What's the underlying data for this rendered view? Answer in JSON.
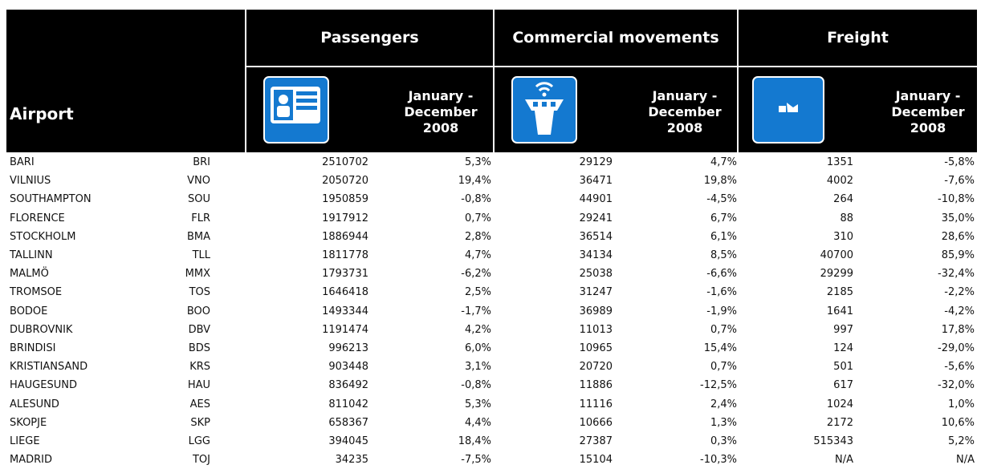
{
  "table": {
    "header": {
      "airport": "Airport",
      "groups": [
        "Passengers",
        "Commercial movements",
        "Freight"
      ],
      "period": [
        "January -",
        "December",
        "2008"
      ]
    },
    "rows": [
      [
        "BARI",
        "BRI",
        2510702,
        "5,3%",
        29129,
        "4,7%",
        1351,
        "-5,8%"
      ],
      [
        "VILNIUS",
        "VNO",
        2050720,
        "19,4%",
        36471,
        "19,8%",
        4002,
        "-7,6%"
      ],
      [
        "SOUTHAMPTON",
        "SOU",
        1950859,
        "-0,8%",
        44901,
        "-4,5%",
        264,
        "-10,8%"
      ],
      [
        "FLORENCE",
        "FLR",
        1917912,
        "0,7%",
        29241,
        "6,7%",
        88,
        "35,0%"
      ],
      [
        "STOCKHOLM",
        "BMA",
        1886944,
        "2,8%",
        36514,
        "6,1%",
        310,
        "28,6%"
      ],
      [
        "TALLINN",
        "TLL",
        1811778,
        "4,7%",
        34134,
        "8,5%",
        40700,
        "85,9%"
      ],
      [
        "MALMÖ",
        "MMX",
        1793731,
        "-6,2%",
        25038,
        "-6,6%",
        29299,
        "-32,4%"
      ],
      [
        "TROMSOE",
        "TOS",
        1646418,
        "2,5%",
        31247,
        "-1,6%",
        2185,
        "-2,2%"
      ],
      [
        "BODOE",
        "BOO",
        1493344,
        "-1,7%",
        36989,
        "-1,9%",
        1641,
        "-4,2%"
      ],
      [
        "DUBROVNIK",
        "DBV",
        1191474,
        "4,2%",
        11013,
        "0,7%",
        997,
        "17,8%"
      ],
      [
        "BRINDISI",
        "BDS",
        996213,
        "6,0%",
        10965,
        "15,4%",
        124,
        "-29,0%"
      ],
      [
        "KRISTIANSAND",
        "KRS",
        903448,
        "3,1%",
        20720,
        "0,7%",
        501,
        "-5,6%"
      ],
      [
        "HAUGESUND",
        "HAU",
        836492,
        "-0,8%",
        11886,
        "-12,5%",
        617,
        "-32,0%"
      ],
      [
        "ALESUND",
        "AES",
        811042,
        "5,3%",
        11116,
        "2,4%",
        1024,
        "1,0%"
      ],
      [
        "SKOPJE",
        "SKP",
        658367,
        "4,4%",
        10666,
        "1,3%",
        2172,
        "10,6%"
      ],
      [
        "LIEGE",
        "LGG",
        394045,
        "18,4%",
        27387,
        "0,3%",
        515343,
        "5,2%"
      ],
      [
        "MADRID",
        "TOJ",
        34235,
        "-7,5%",
        15104,
        "-10,3%",
        "N/A",
        "N/A"
      ]
    ]
  }
}
